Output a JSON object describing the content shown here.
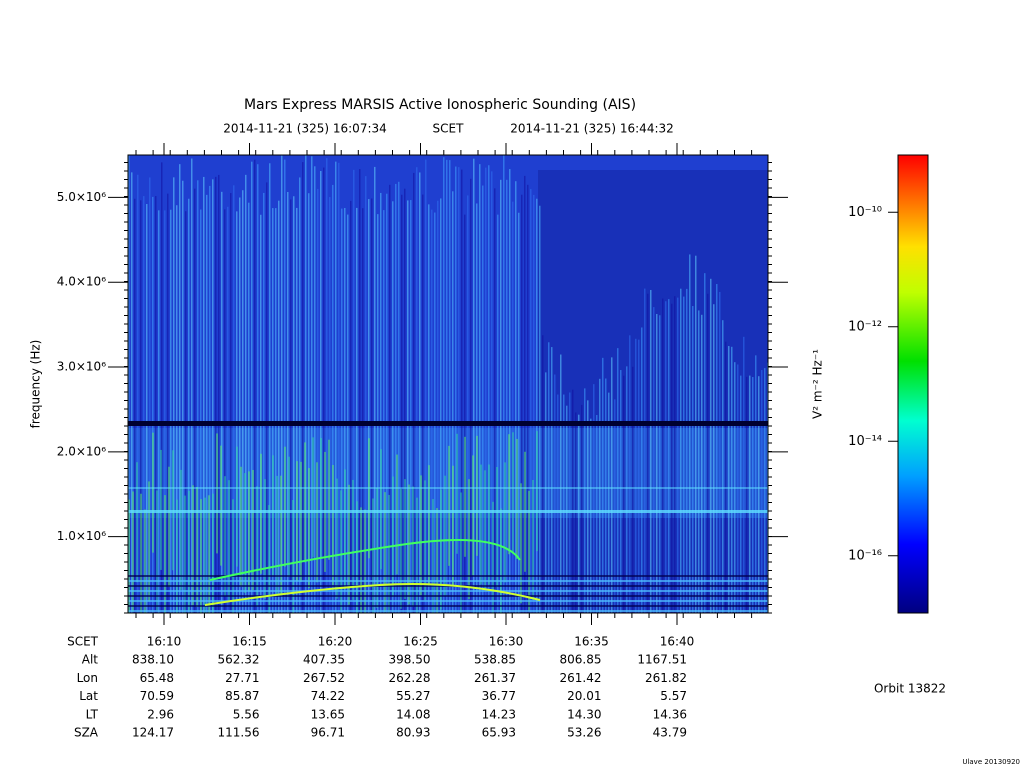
{
  "chart_data": {
    "type": "spectrogram",
    "title": "Mars Express MARSIS Active Ionospheric Sounding (AIS)",
    "subtitle_start": "2014-11-21 (325) 16:07:34",
    "subtitle_mid": "SCET",
    "subtitle_end": "2014-11-21 (325) 16:44:32",
    "ylabel": "frequency (Hz)",
    "ylim": [
      100000,
      5500000
    ],
    "yticks": [
      {
        "value": 1000000,
        "label": "1.0×10⁶"
      },
      {
        "value": 2000000,
        "label": "2.0×10⁶"
      },
      {
        "value": 3000000,
        "label": "3.0×10⁶"
      },
      {
        "value": 4000000,
        "label": "4.0×10⁶"
      },
      {
        "value": 5000000,
        "label": "5.0×10⁶"
      }
    ],
    "colorbar": {
      "label": "V² m⁻² Hz⁻¹",
      "log_scale": true,
      "lim": [
        1e-17,
        1e-09
      ],
      "ticks": [
        {
          "value": 1e-10,
          "label": "10⁻¹⁰"
        },
        {
          "value": 1e-12,
          "label": "10⁻¹²"
        },
        {
          "value": 1e-14,
          "label": "10⁻¹⁴"
        },
        {
          "value": 1e-16,
          "label": "10⁻¹⁶"
        }
      ]
    },
    "ephemeris": [
      {
        "label": "SCET",
        "values": [
          "16:10",
          "16:15",
          "16:20",
          "16:25",
          "16:30",
          "16:35",
          "16:40"
        ]
      },
      {
        "label": "Alt",
        "values": [
          "838.10",
          "562.32",
          "407.35",
          "398.50",
          "538.85",
          "806.85",
          "1167.51"
        ]
      },
      {
        "label": "Lon",
        "values": [
          "65.48",
          "27.71",
          "267.52",
          "262.28",
          "261.37",
          "261.42",
          "261.82"
        ]
      },
      {
        "label": "Lat",
        "values": [
          "70.59",
          "85.87",
          "74.22",
          "55.27",
          "36.77",
          "20.01",
          "5.57"
        ]
      },
      {
        "label": "LT",
        "values": [
          "2.96",
          "5.56",
          "13.65",
          "14.08",
          "14.23",
          "14.30",
          "14.36"
        ]
      },
      {
        "label": "SZA",
        "values": [
          "124.17",
          "111.56",
          "96.71",
          "80.93",
          "65.93",
          "53.26",
          "43.79"
        ]
      }
    ],
    "orbit": "Orbit 13822",
    "footer": "Ulave 20130920"
  }
}
